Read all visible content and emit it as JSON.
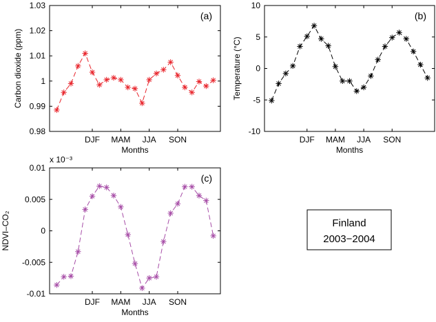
{
  "legend": {
    "line1": "Finland",
    "line2": "2003−2004"
  },
  "chart_data": [
    {
      "type": "line",
      "panel_label": "(a)",
      "xlabel": "Months",
      "ylabel": "Carbon dioxide (ppm)",
      "x_tick_labels": [
        {
          "label": "DJF",
          "x": 6
        },
        {
          "label": "MAM",
          "x": 10
        },
        {
          "label": "JJA",
          "x": 14
        },
        {
          "label": "SON",
          "x": 18
        }
      ],
      "xlim": [
        0,
        24
      ],
      "ylim": [
        0.98,
        1.03
      ],
      "yticks": [
        "0.98",
        "0.99",
        "1",
        "1.01",
        "1.02",
        "1.03"
      ],
      "ytick_values": [
        0.98,
        0.99,
        1.0,
        1.01,
        1.02,
        1.03
      ],
      "color": "#e8242b",
      "marker": "asterisk",
      "line_style": "dashed",
      "x": [
        1,
        2,
        3,
        4,
        5,
        6,
        7,
        8,
        9,
        10,
        11,
        12,
        13,
        14,
        15,
        16,
        17,
        18,
        19,
        20,
        21,
        22,
        23
      ],
      "values": [
        0.9885,
        0.9955,
        0.999,
        1.006,
        1.011,
        1.0035,
        0.9985,
        1.0005,
        1.0013,
        1.0005,
        0.9975,
        0.997,
        0.9912,
        1.0005,
        1.003,
        1.0045,
        1.0075,
        1.0022,
        0.9975,
        0.9955,
        0.9998,
        0.998,
        1.0003
      ]
    },
    {
      "type": "line",
      "panel_label": "(b)",
      "xlabel": "Months",
      "ylabel": "Temperature (°C)",
      "x_tick_labels": [
        {
          "label": "DJF",
          "x": 6
        },
        {
          "label": "MAM",
          "x": 10
        },
        {
          "label": "JJA",
          "x": 14
        },
        {
          "label": "SON",
          "x": 18
        }
      ],
      "xlim": [
        0,
        24
      ],
      "ylim": [
        -10,
        10
      ],
      "yticks": [
        "-10",
        "-5",
        "0",
        "5",
        "10"
      ],
      "ytick_values": [
        -10,
        -5,
        0,
        5,
        10
      ],
      "color": "#000000",
      "marker": "asterisk",
      "line_style": "dashed",
      "x": [
        1,
        2,
        3,
        4,
        5,
        6,
        7,
        8,
        9,
        10,
        11,
        12,
        13,
        14,
        15,
        16,
        17,
        18,
        19,
        20,
        21,
        22,
        23
      ],
      "values": [
        -5.1,
        -2.4,
        -0.8,
        0.4,
        3.5,
        5.1,
        6.8,
        4.7,
        3.6,
        0.3,
        -2.0,
        -2.0,
        -3.6,
        -3.0,
        -1.2,
        1.4,
        3.5,
        4.9,
        5.7,
        4.7,
        2.7,
        0.6,
        -1.5
      ]
    },
    {
      "type": "line",
      "panel_label": "(c)",
      "xlabel": "Months",
      "ylabel": "NDVI–CO₂",
      "multiplier": "x 10⁻³",
      "x_tick_labels": [
        {
          "label": "DJF",
          "x": 6
        },
        {
          "label": "MAM",
          "x": 10
        },
        {
          "label": "JJA",
          "x": 14
        },
        {
          "label": "SON",
          "x": 18
        }
      ],
      "xlim": [
        0,
        24
      ],
      "ylim": [
        -0.01,
        0.01
      ],
      "yticks": [
        "-0.01",
        "-0.005",
        "0",
        "0.005",
        "0.01"
      ],
      "ytick_values": [
        -0.01,
        -0.005,
        0,
        0.005,
        0.01
      ],
      "color": "#a64ca6",
      "marker": "asterisk",
      "line_style": "dashed",
      "x": [
        1,
        2,
        3,
        4,
        5,
        6,
        7,
        8,
        9,
        10,
        11,
        12,
        13,
        14,
        15,
        16,
        17,
        18,
        19,
        20,
        21,
        22,
        23
      ],
      "values": [
        -0.0086,
        -0.0073,
        -0.0072,
        -0.0033,
        0.0034,
        0.0055,
        0.0071,
        0.0069,
        0.0056,
        0.0038,
        -0.0006,
        -0.0052,
        -0.0091,
        -0.0075,
        -0.0073,
        -0.0017,
        0.0028,
        0.0043,
        0.007,
        0.007,
        0.0056,
        0.0048,
        -0.0008
      ]
    }
  ]
}
